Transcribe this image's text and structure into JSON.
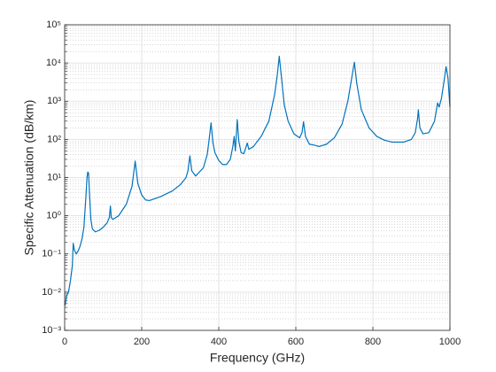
{
  "chart_data": {
    "type": "line",
    "xlabel": "Frequency (GHz)",
    "ylabel": "Specific Attenuation (dB/km)",
    "color": "#0072bd",
    "log_y": true,
    "grid": true,
    "minor_grid": true,
    "xlim": [
      0,
      1000
    ],
    "xticks": [
      0,
      200,
      400,
      600,
      800,
      1000
    ],
    "ylim": [
      0.001,
      100000
    ],
    "yticks": [
      {
        "value": 0.001,
        "label": "10⁻³"
      },
      {
        "value": 0.01,
        "label": "10⁻²"
      },
      {
        "value": 0.1,
        "label": "10⁻¹"
      },
      {
        "value": 1,
        "label": "10⁰"
      },
      {
        "value": 10,
        "label": "10¹"
      },
      {
        "value": 100,
        "label": "10²"
      },
      {
        "value": 1000,
        "label": "10³"
      },
      {
        "value": 10000,
        "label": "10⁴"
      },
      {
        "value": 100000,
        "label": "10⁵"
      }
    ],
    "x": [
      1,
      5,
      10,
      15,
      20,
      22.2,
      25,
      30,
      35,
      40,
      45,
      50,
      55,
      58,
      60,
      62,
      65,
      68,
      72,
      80,
      90,
      100,
      110,
      116,
      118.75,
      121,
      125,
      140,
      160,
      175,
      183,
      190,
      200,
      210,
      220,
      250,
      280,
      300,
      315,
      320,
      325,
      330,
      340,
      360,
      370,
      375,
      380,
      385,
      390,
      400,
      410,
      420,
      430,
      437,
      440,
      443,
      446,
      448,
      452,
      458,
      465,
      470,
      474,
      478,
      490,
      510,
      530,
      545,
      552,
      557,
      562,
      570,
      580,
      595,
      610,
      616,
      620,
      625,
      635,
      650,
      660,
      680,
      700,
      720,
      735,
      745,
      752,
      758,
      770,
      790,
      810,
      830,
      850,
      880,
      900,
      910,
      916,
      918,
      922,
      930,
      945,
      960,
      968,
      972,
      978,
      985,
      990,
      995,
      1000
    ],
    "values": [
      0.0045,
      0.008,
      0.01,
      0.02,
      0.05,
      0.19,
      0.13,
      0.1,
      0.12,
      0.16,
      0.25,
      0.5,
      3,
      10,
      14,
      13,
      3,
      0.8,
      0.45,
      0.38,
      0.42,
      0.5,
      0.65,
      0.9,
      1.8,
      0.9,
      0.8,
      1.0,
      2,
      6,
      27,
      7,
      3.5,
      2.6,
      2.5,
      3.2,
      4.5,
      6.5,
      10,
      15,
      37,
      15,
      11,
      18,
      40,
      100,
      270,
      80,
      45,
      28,
      22,
      22,
      30,
      70,
      120,
      50,
      150,
      330,
      90,
      45,
      42,
      60,
      80,
      55,
      65,
      120,
      300,
      1500,
      5000,
      15000,
      5000,
      800,
      300,
      140,
      110,
      150,
      290,
      120,
      75,
      70,
      65,
      75,
      110,
      250,
      1000,
      4000,
      10500,
      3000,
      600,
      200,
      120,
      95,
      85,
      85,
      100,
      150,
      350,
      600,
      200,
      140,
      150,
      300,
      900,
      700,
      1200,
      3500,
      8000,
      4000,
      700
    ]
  }
}
